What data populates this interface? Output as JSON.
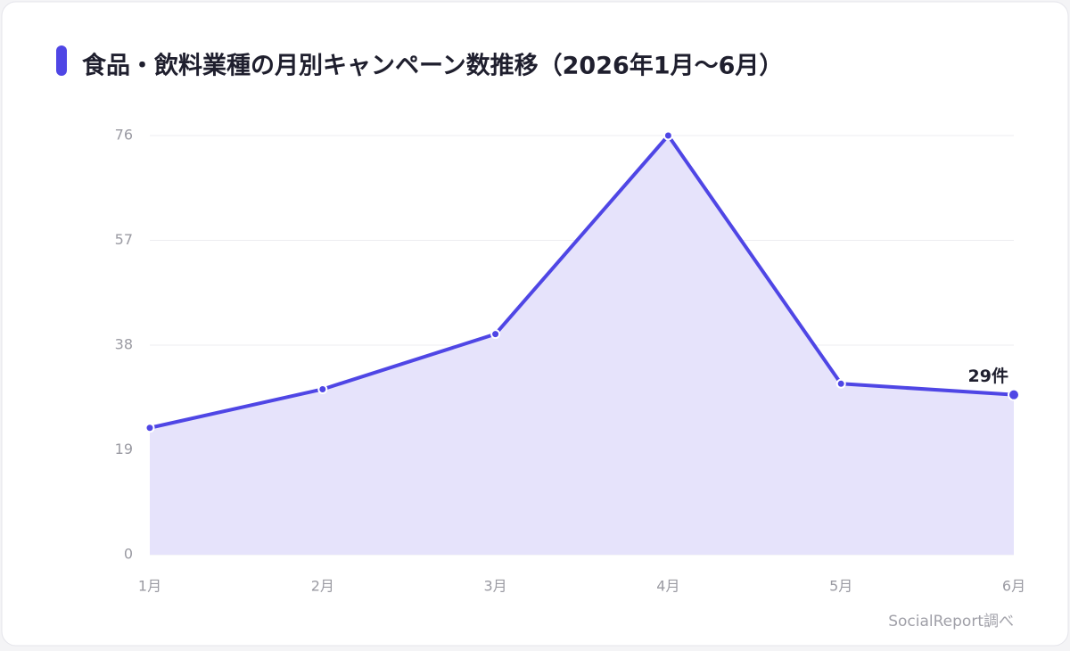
{
  "chart_data": {
    "type": "line",
    "title": "食品・飲料業種の月別キャンペーン数推移（2026年1月〜6月）",
    "categories": [
      "1月",
      "2月",
      "3月",
      "4月",
      "5月",
      "6月"
    ],
    "values": [
      23,
      30,
      40,
      76,
      31,
      29
    ],
    "value_labels": [
      null,
      null,
      null,
      null,
      null,
      "29件"
    ],
    "color": "#4f46e5",
    "area_color": "#e6e3fb",
    "ylim": [
      0,
      76
    ],
    "yticks": [
      0,
      19,
      38,
      57,
      76
    ],
    "grid": true,
    "source": "SocialReport調べ"
  }
}
